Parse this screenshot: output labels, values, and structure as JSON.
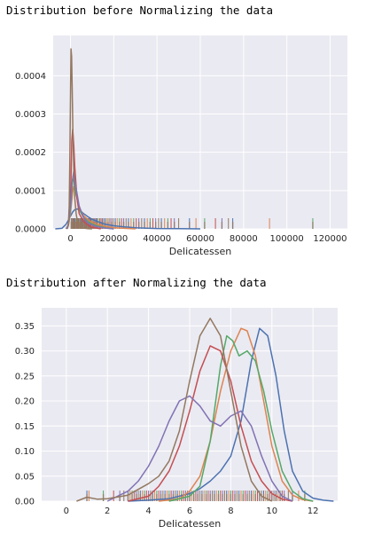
{
  "captions": {
    "before": "Distribution before Normalizing the data",
    "after": "Distribution after Normalizing the data"
  },
  "colors": {
    "background": "#eaeaf2",
    "grid": "#ffffff",
    "series": [
      "#4c72b0",
      "#dd8452",
      "#55a868",
      "#c44e52",
      "#8172b3",
      "#937860"
    ]
  },
  "chart_data": [
    {
      "type": "line",
      "subtype": "kde-with-rugplot",
      "title": "",
      "xlabel": "Delicatessen",
      "ylabel": "",
      "xlim": [
        -8000,
        128000
      ],
      "ylim": [
        0,
        0.000505
      ],
      "xticks": [
        0,
        20000,
        40000,
        60000,
        80000,
        100000,
        120000
      ],
      "xtick_labels": [
        "0",
        "20000",
        "40000",
        "60000",
        "80000",
        "100000",
        "120000"
      ],
      "yticks": [
        0,
        0.0001,
        0.0002,
        0.0003,
        0.0004
      ],
      "ytick_labels": [
        "0.0000",
        "0.0001",
        "0.0002",
        "0.0003",
        "0.0004"
      ],
      "grid": true,
      "series": [
        {
          "x": [
            -7000,
            -4000,
            -2000,
            0,
            1000,
            2000,
            3000,
            4000,
            5000,
            6000,
            8000,
            10000,
            13000,
            16000,
            20000,
            25000,
            30000,
            35000,
            40000,
            50000,
            60000
          ],
          "y": [
            0,
            1.5e-06,
            1.2e-05,
            3.3e-05,
            4.4e-05,
            5e-05,
            5.2e-05,
            5e-05,
            4.5e-05,
            4e-05,
            3.2e-05,
            2.5e-05,
            1.8e-05,
            1.2e-05,
            8e-06,
            5e-06,
            3e-06,
            1.8e-06,
            1e-06,
            4e-07,
            0
          ]
        },
        {
          "x": [
            -2000,
            -1000,
            0,
            500,
            1000,
            1500,
            2000,
            3000,
            4000,
            6000,
            9000,
            12000,
            16000,
            20000,
            30000
          ],
          "y": [
            0,
            8e-06,
            4e-05,
            7e-05,
            9.5e-05,
            0.00011,
            0.0001,
            8e-05,
            5.5e-05,
            3.5e-05,
            2e-05,
            1.2e-05,
            6e-06,
            3e-06,
            0
          ]
        },
        {
          "x": [
            -2000,
            -1000,
            0,
            500,
            1000,
            1500,
            2000,
            3000,
            4000,
            6000,
            9000,
            12000,
            16000,
            20000
          ],
          "y": [
            0,
            1e-05,
            5e-05,
            9e-05,
            0.000125,
            0.00013,
            0.00011,
            8e-05,
            5e-05,
            3e-05,
            1.5e-05,
            8e-06,
            3e-06,
            0
          ]
        },
        {
          "x": [
            -1500,
            -800,
            0,
            300,
            600,
            1000,
            1500,
            2000,
            3000,
            4000,
            6000,
            8000,
            10000,
            14000
          ],
          "y": [
            0,
            2e-05,
            8e-05,
            0.00015,
            0.00023,
            0.00026,
            0.00022,
            0.00016,
            8e-05,
            4e-05,
            2e-05,
            1e-05,
            4e-06,
            0
          ]
        },
        {
          "x": [
            -2000,
            -1000,
            0,
            700,
            1500,
            2500,
            4000,
            6000,
            8000,
            12000,
            16000,
            20000
          ],
          "y": [
            0,
            1e-05,
            6e-05,
            0.00012,
            0.00015,
            0.00011,
            6e-05,
            3e-05,
            1.5e-05,
            6e-06,
            2e-06,
            0
          ]
        },
        {
          "x": [
            -1500,
            -1000,
            -600,
            -300,
            0,
            250,
            500,
            800,
            1100,
            1500,
            2000,
            2600,
            3200,
            4000,
            5000,
            6000,
            8000,
            10000
          ],
          "y": [
            0,
            1e-05,
            6e-05,
            0.00018,
            0.00034,
            0.00047,
            0.00045,
            0.00036,
            0.00026,
            0.00016,
            8e-05,
            4e-05,
            2e-05,
            1e-05,
            5e-06,
            2e-06,
            5e-07,
            0
          ]
        }
      ],
      "rug": {
        "values": [
          300,
          600,
          900,
          1200,
          1500,
          1800,
          2100,
          2400,
          2700,
          3000,
          3300,
          3600,
          3900,
          4200,
          4500,
          4800,
          5100,
          5400,
          5700,
          6000,
          6300,
          6600,
          6900,
          7200,
          7500,
          7800,
          8100,
          8400,
          8700,
          9000,
          9400,
          9800,
          10300,
          10800,
          11300,
          11800,
          12300,
          12900,
          13500,
          14100,
          14700,
          15300,
          16000,
          16700,
          17400,
          18200,
          19000,
          19800,
          20700,
          21600,
          22600,
          23600,
          24600,
          25700,
          26800,
          28000,
          29200,
          30400,
          31600,
          32900,
          34200,
          35500,
          36800,
          38100,
          39400,
          40700,
          42000,
          43500,
          45000,
          46500,
          48000,
          50000,
          55000,
          58000,
          62000,
          67000,
          70000,
          73000,
          75000,
          92000,
          112000
        ],
        "colors_cycle": true
      }
    },
    {
      "type": "line",
      "subtype": "kde-with-rugplot",
      "title": "",
      "xlabel": "Delicatessen",
      "ylabel": "",
      "xlim": [
        -1.2,
        13.2
      ],
      "ylim": [
        0,
        0.386
      ],
      "xticks": [
        0,
        2,
        4,
        6,
        8,
        10,
        12
      ],
      "xtick_labels": [
        "0",
        "2",
        "4",
        "6",
        "8",
        "10",
        "12"
      ],
      "yticks": [
        0,
        0.05,
        0.1,
        0.15,
        0.2,
        0.25,
        0.3,
        0.35
      ],
      "ytick_labels": [
        "0.00",
        "0.05",
        "0.10",
        "0.15",
        "0.20",
        "0.25",
        "0.30",
        "0.35"
      ],
      "grid": true,
      "series": [
        {
          "x": [
            3.0,
            4.0,
            5.0,
            6.0,
            6.5,
            7.0,
            7.5,
            8.0,
            8.5,
            9.0,
            9.4,
            9.8,
            10.2,
            10.6,
            11.0,
            11.5,
            12.0,
            12.5,
            13.0
          ],
          "y": [
            0,
            0.002,
            0.005,
            0.015,
            0.025,
            0.04,
            0.06,
            0.09,
            0.16,
            0.28,
            0.345,
            0.33,
            0.25,
            0.14,
            0.06,
            0.02,
            0.006,
            0.002,
            0
          ]
        },
        {
          "x": [
            4.5,
            5.5,
            6.0,
            6.5,
            7.0,
            7.5,
            8.0,
            8.5,
            8.8,
            9.2,
            9.6,
            10.0,
            10.5,
            11.0,
            11.5,
            12.0
          ],
          "y": [
            0,
            0.005,
            0.02,
            0.05,
            0.12,
            0.22,
            0.3,
            0.345,
            0.34,
            0.29,
            0.2,
            0.11,
            0.04,
            0.012,
            0.003,
            0
          ]
        },
        {
          "x": [
            5.0,
            6.0,
            6.5,
            7.0,
            7.5,
            7.8,
            8.1,
            8.4,
            8.8,
            9.2,
            9.6,
            10.0,
            10.5,
            11.0,
            11.5,
            12.0
          ],
          "y": [
            0,
            0.01,
            0.03,
            0.12,
            0.27,
            0.33,
            0.32,
            0.29,
            0.3,
            0.28,
            0.22,
            0.14,
            0.06,
            0.02,
            0.005,
            0
          ]
        },
        {
          "x": [
            3.0,
            4.0,
            4.5,
            5.0,
            5.5,
            6.0,
            6.5,
            7.0,
            7.5,
            8.0,
            8.5,
            9.0,
            9.5,
            10.0,
            10.5,
            11.0
          ],
          "y": [
            0,
            0.01,
            0.03,
            0.06,
            0.11,
            0.18,
            0.26,
            0.31,
            0.3,
            0.24,
            0.15,
            0.08,
            0.04,
            0.015,
            0.004,
            0
          ]
        },
        {
          "x": [
            2.0,
            3.0,
            3.5,
            4.0,
            4.5,
            5.0,
            5.5,
            6.0,
            6.5,
            7.0,
            7.5,
            8.0,
            8.5,
            9.0,
            9.5,
            10.0,
            10.5,
            11.0
          ],
          "y": [
            0,
            0.02,
            0.04,
            0.07,
            0.11,
            0.16,
            0.2,
            0.21,
            0.19,
            0.16,
            0.15,
            0.17,
            0.18,
            0.15,
            0.09,
            0.04,
            0.01,
            0
          ]
        },
        {
          "x": [
            0.5,
            1.0,
            1.5,
            2.0,
            3.0,
            4.0,
            4.5,
            5.0,
            5.5,
            6.0,
            6.5,
            7.0,
            7.5,
            8.0,
            8.5,
            9.0,
            9.5,
            10.0
          ],
          "y": [
            0,
            0.008,
            0.004,
            0.005,
            0.012,
            0.035,
            0.05,
            0.08,
            0.14,
            0.24,
            0.33,
            0.365,
            0.33,
            0.22,
            0.11,
            0.04,
            0.01,
            0
          ]
        }
      ],
      "rug": {
        "values": [
          1.0,
          1.1,
          1.8,
          2.3,
          2.6,
          2.8,
          3.0,
          3.1,
          3.2,
          3.3,
          3.4,
          3.5,
          3.6,
          3.7,
          3.8,
          3.9,
          4.0,
          4.1,
          4.2,
          4.3,
          4.4,
          4.5,
          4.6,
          4.7,
          4.8,
          4.9,
          5.0,
          5.1,
          5.2,
          5.3,
          5.4,
          5.5,
          5.6,
          5.7,
          5.8,
          5.9,
          6.0,
          6.1,
          6.2,
          6.3,
          6.4,
          6.5,
          6.6,
          6.7,
          6.8,
          6.9,
          7.0,
          7.1,
          7.2,
          7.3,
          7.4,
          7.5,
          7.6,
          7.7,
          7.8,
          7.9,
          8.0,
          8.1,
          8.2,
          8.3,
          8.4,
          8.5,
          8.6,
          8.7,
          8.8,
          8.9,
          9.0,
          9.1,
          9.2,
          9.3,
          9.4,
          9.5,
          9.6,
          9.7,
          9.8,
          9.9,
          10.0,
          10.1,
          10.2,
          10.3,
          10.4,
          10.5,
          10.6,
          10.8,
          11.0,
          11.3,
          11.6
        ],
        "colors_cycle": true
      }
    }
  ]
}
